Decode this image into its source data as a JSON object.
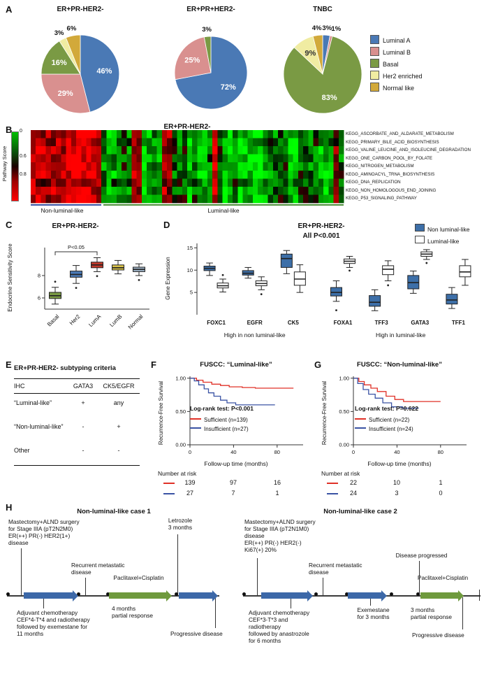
{
  "panel_labels": {
    "A": "A",
    "B": "B",
    "C": "C",
    "D": "D",
    "E": "E",
    "F": "F",
    "G": "G",
    "H": "H"
  },
  "colors": {
    "luminal_a_blue": "#4a79b5",
    "luminal_b_pink": "#d9908f",
    "basal_green": "#7a9a44",
    "her2_yellow": "#f0eca2",
    "normal_gold": "#d2a93a",
    "km_red": "#e03127",
    "km_blue": "#3a53a4",
    "timeline_blue": "#3c68a8",
    "timeline_green": "#6f9a3d"
  },
  "chart_data": [
    {
      "id": "pie-er-pr-neg",
      "type": "pie",
      "title": "ER+PR-HER2-",
      "legend": [
        {
          "label": "Luminal A",
          "color": "#4a79b5"
        },
        {
          "label": "Luminal B",
          "color": "#d9908f"
        },
        {
          "label": "Basal",
          "color": "#7a9a44"
        },
        {
          "label": "Her2 enriched",
          "color": "#f0eca2"
        },
        {
          "label": "Normal like",
          "color": "#d2a93a"
        }
      ],
      "slices": [
        {
          "label": "Luminal A",
          "pct": 46
        },
        {
          "label": "Luminal B",
          "pct": 29
        },
        {
          "label": "Basal",
          "pct": 16
        },
        {
          "label": "Her2 enriched",
          "pct": 3
        },
        {
          "label": "Normal like",
          "pct": 6
        }
      ]
    },
    {
      "id": "pie-er-pr-pos",
      "type": "pie",
      "title": "ER+PR+HER2-",
      "slices": [
        {
          "label": "Luminal A",
          "pct": 72
        },
        {
          "label": "Luminal B",
          "pct": 25
        },
        {
          "label": "Basal",
          "pct": 3
        }
      ]
    },
    {
      "id": "pie-tnbc",
      "type": "pie",
      "title": "TNBC",
      "slices": [
        {
          "label": "Luminal A",
          "pct": 3
        },
        {
          "label": "Luminal B",
          "pct": 1
        },
        {
          "label": "Basal",
          "pct": 83
        },
        {
          "label": "Her2 enriched",
          "pct": 9
        },
        {
          "label": "Normal like",
          "pct": 4
        }
      ]
    },
    {
      "id": "pathway-heatmap",
      "type": "heatmap",
      "title": "ER+PR-HER2-",
      "colorbar_label": "Pathway Score",
      "colorbar_ticks": [
        "0",
        "0.6",
        "0.8"
      ],
      "row_labels": [
        "KEGG_ASCORBATE_AND_ALDARATE_METABOLISM",
        "KEGG_PRIMARY_BILE_ACID_BIOSYNTHESIS",
        "KEGG_VALINE_LEUCINE_AND_ISOLEUCINE_DEGRADATION",
        "KEGG_ONE_CARBON_POOL_BY_FOLATE",
        "KEGG_NITROGEN_METABOLISM",
        "KEGG_AMINOACYL_TRNA_BIOSYNTHESIS",
        "KEGG_DNA_REPLICATION",
        "KEGG_NON_HOMOLOGOUS_END_JOINING",
        "KEGG_P53_SIGNALING_PATHWAY"
      ],
      "group_labels": [
        "Non-luminal-like",
        "Luminal-like"
      ],
      "group_line_colors": [
        "#3a53a4",
        "#4e8f3a"
      ],
      "n_columns": 62,
      "non_luminal_columns": 14
    },
    {
      "id": "endocrine-box",
      "type": "box",
      "title": "ER+PR-HER2-",
      "annotation": "P<0.05",
      "ylabel": "Endocrine Sensitivity Score",
      "yticks": [
        6,
        8
      ],
      "ylim": [
        5,
        10.5
      ],
      "categories": [
        "Basal",
        "Her2",
        "LumA",
        "LumB",
        "Normal"
      ],
      "colors": [
        "#7a9a44",
        "#4a79b5",
        "#c0392b",
        "#d8c24a",
        "#9bb0c4"
      ],
      "boxes": [
        {
          "wl": 5.45,
          "q1": 5.95,
          "med": 6.2,
          "q3": 6.5,
          "wh": 6.95,
          "out": [
            7.45
          ]
        },
        {
          "wl": 7.3,
          "q1": 7.85,
          "med": 8.1,
          "q3": 8.4,
          "wh": 8.9,
          "out": [
            6.9
          ]
        },
        {
          "wl": 8.35,
          "q1": 8.7,
          "med": 8.95,
          "q3": 9.2,
          "wh": 9.6,
          "out": [
            7.95
          ]
        },
        {
          "wl": 8.15,
          "q1": 8.5,
          "med": 8.7,
          "q3": 8.95,
          "wh": 9.35,
          "out": []
        },
        {
          "wl": 8.0,
          "q1": 8.35,
          "med": 8.55,
          "q3": 8.75,
          "wh": 9.05,
          "out": [
            7.6
          ]
        }
      ]
    },
    {
      "id": "gene-expression-box",
      "type": "grouped_box",
      "title": "ER+PR-HER2-",
      "subtitle": "All P<0.001",
      "ylabel": "Gene Expression",
      "yticks": [
        5,
        10,
        15
      ],
      "ylim": [
        0,
        16
      ],
      "categories": [
        "FOXC1",
        "EGFR",
        "CK5",
        "FOXA1",
        "TFF3",
        "GATA3",
        "TFF1"
      ],
      "group_labels": [
        "High in non luminal-like",
        "High in luminal-like"
      ],
      "group_split": 3,
      "series": [
        {
          "name": "Non luminal-like",
          "color": "#3d6fa8",
          "boxes": [
            {
              "wl": 8.8,
              "q1": 9.9,
              "med": 10.4,
              "q3": 10.9,
              "wh": 11.6,
              "out": []
            },
            {
              "wl": 8.2,
              "q1": 8.9,
              "med": 9.3,
              "q3": 9.9,
              "wh": 10.6,
              "out": []
            },
            {
              "wl": 9.2,
              "q1": 10.6,
              "med": 12.6,
              "q3": 13.6,
              "wh": 14.4,
              "out": []
            },
            {
              "wl": 3.0,
              "q1": 4.2,
              "med": 5.0,
              "q3": 6.1,
              "wh": 7.6,
              "out": [
                1.0
              ]
            },
            {
              "wl": 0.9,
              "q1": 1.9,
              "med": 2.8,
              "q3": 4.3,
              "wh": 5.6,
              "out": []
            },
            {
              "wl": 4.8,
              "q1": 5.8,
              "med": 7.2,
              "q3": 8.8,
              "wh": 9.8,
              "out": []
            },
            {
              "wl": 1.4,
              "q1": 2.4,
              "med": 3.3,
              "q3": 4.6,
              "wh": 6.1,
              "out": []
            }
          ]
        },
        {
          "name": "Luminal-like",
          "color": "#ffffff",
          "boxes": [
            {
              "wl": 5.1,
              "q1": 6.0,
              "med": 6.5,
              "q3": 7.1,
              "wh": 8.0,
              "out": [
                8.9
              ]
            },
            {
              "wl": 5.6,
              "q1": 6.5,
              "med": 7.0,
              "q3": 7.6,
              "wh": 8.5,
              "out": [
                4.6
              ]
            },
            {
              "wl": 5.0,
              "q1": 6.6,
              "med": 8.0,
              "q3": 9.6,
              "wh": 11.2,
              "out": []
            },
            {
              "wl": 10.6,
              "q1": 11.5,
              "med": 12.0,
              "q3": 12.5,
              "wh": 13.1,
              "out": [
                9.9
              ]
            },
            {
              "wl": 7.6,
              "q1": 9.0,
              "med": 10.2,
              "q3": 11.0,
              "wh": 12.1,
              "out": [
                6.6
              ]
            },
            {
              "wl": 12.4,
              "q1": 13.1,
              "med": 13.6,
              "q3": 14.1,
              "wh": 14.6,
              "out": [
                11.6
              ]
            },
            {
              "wl": 6.6,
              "q1": 8.5,
              "med": 9.6,
              "q3": 11.0,
              "wh": 12.4,
              "out": []
            }
          ]
        }
      ]
    },
    {
      "id": "km-luminal",
      "type": "km",
      "title": "FUSCC: “Luminal-like”",
      "ylabel": "Recurrence-Free Survival",
      "xlabel": "Follow-up time (months)",
      "yticks": [
        "1.00",
        "0.50",
        "0.00"
      ],
      "xticks": [
        0,
        40,
        80
      ],
      "xlim": [
        0,
        100
      ],
      "stat": "Log-rank test: P<0.001",
      "series": [
        {
          "name": "Sufficient (n=139)",
          "color": "#e03127",
          "steps": [
            [
              0,
              1.0
            ],
            [
              6,
              0.97
            ],
            [
              12,
              0.94
            ],
            [
              20,
              0.91
            ],
            [
              28,
              0.89
            ],
            [
              36,
              0.87
            ],
            [
              48,
              0.86
            ],
            [
              60,
              0.85
            ],
            [
              95,
              0.85
            ]
          ]
        },
        {
          "name": "Insufficient (n=27)",
          "color": "#3a53a4",
          "steps": [
            [
              0,
              1.0
            ],
            [
              4,
              0.96
            ],
            [
              8,
              0.9
            ],
            [
              13,
              0.84
            ],
            [
              17,
              0.78
            ],
            [
              22,
              0.73
            ],
            [
              28,
              0.67
            ],
            [
              34,
              0.63
            ],
            [
              42,
              0.6
            ],
            [
              78,
              0.6
            ]
          ]
        }
      ],
      "risk_label": "Number at risk",
      "risk_rows": [
        {
          "color": "#e03127",
          "values": [
            "139",
            "97",
            "16"
          ]
        },
        {
          "color": "#3a53a4",
          "values": [
            "27",
            "7",
            "1"
          ]
        }
      ]
    },
    {
      "id": "km-non-luminal",
      "type": "km",
      "title": "FUSCC: “Non-luminal-like”",
      "ylabel": "Recurrence-Free Survival",
      "xlabel": "Follow-up time (months)",
      "yticks": [
        "1.00",
        "0.50",
        "0.00"
      ],
      "xticks": [
        0,
        40,
        80
      ],
      "xlim": [
        0,
        100
      ],
      "stat": "Log-rank test: P=0.622",
      "series": [
        {
          "name": "Sufficient (n=22)",
          "color": "#e03127",
          "steps": [
            [
              0,
              1.0
            ],
            [
              5,
              0.95
            ],
            [
              10,
              0.9
            ],
            [
              16,
              0.85
            ],
            [
              22,
              0.8
            ],
            [
              30,
              0.73
            ],
            [
              38,
              0.68
            ],
            [
              46,
              0.65
            ],
            [
              80,
              0.65
            ]
          ]
        },
        {
          "name": "Insufficient (n=24)",
          "color": "#3a53a4",
          "steps": [
            [
              0,
              1.0
            ],
            [
              4,
              0.92
            ],
            [
              9,
              0.83
            ],
            [
              14,
              0.76
            ],
            [
              20,
              0.7
            ],
            [
              27,
              0.63
            ],
            [
              35,
              0.57
            ],
            [
              45,
              0.55
            ],
            [
              60,
              0.55
            ]
          ]
        }
      ],
      "risk_label": "Number at risk",
      "risk_rows": [
        {
          "color": "#e03127",
          "values": [
            "22",
            "10",
            "1"
          ]
        },
        {
          "color": "#3a53a4",
          "values": [
            "24",
            "3",
            "0"
          ]
        }
      ]
    }
  ],
  "subtyping_table": {
    "title": "ER+PR-HER2- subtyping criteria",
    "headers": [
      "IHC",
      "GATA3",
      "CK5/EGFR"
    ],
    "rows": [
      {
        "label": "“Luminal-like”",
        "gata3": "+",
        "ck5egfr": "any"
      },
      {
        "label": "“Non-luminal-like”",
        "gata3": "-",
        "ck5egfr": "+"
      },
      {
        "label": "Other",
        "gata3": "-",
        "ck5egfr": "-"
      }
    ]
  },
  "cases": [
    {
      "title": "Non-luminal-like case 1",
      "surgery": "Mastectomy+ALND surgery\nfor Stage IIIA (pT2N2M0)\nER(++) PR(-) HER2(1+)\ndisease",
      "recurrent": "Recurrent metastatic\ndisease",
      "upper_right": "Letrozole\n3 months",
      "chemo": "Paclitaxel+Cisplatin",
      "response": "4 months\npartial response",
      "adjuvant": "Adjuvant chemotherapy\nCEF*4-T*4 and radiotherapy\nfollowed by exemestane for\n11 months",
      "progressive": "Progressive disease"
    },
    {
      "title": "Non-luminal-like case 2",
      "surgery": "Mastectomy+ALND surgery\nfor Stage IIIA (pT2N1M0)\ndisease\nER(++) PR(-) HER2(-)\nKi67(+) 20%",
      "recurrent": "Recurrent metastatic\ndisease",
      "upper_right": "Disease progressed",
      "chemo": "Paclitaxel+Cisplatin",
      "response": "3 months\npartial response",
      "mid_below": "Exemestane\nfor 3 months",
      "adjuvant": "Adjuvant chemotherapy\nCEF*3-T*3 and\nradiotherapy\nfollowed by anastrozole\nfor 6 months",
      "progressive": "Progressive disease"
    }
  ]
}
